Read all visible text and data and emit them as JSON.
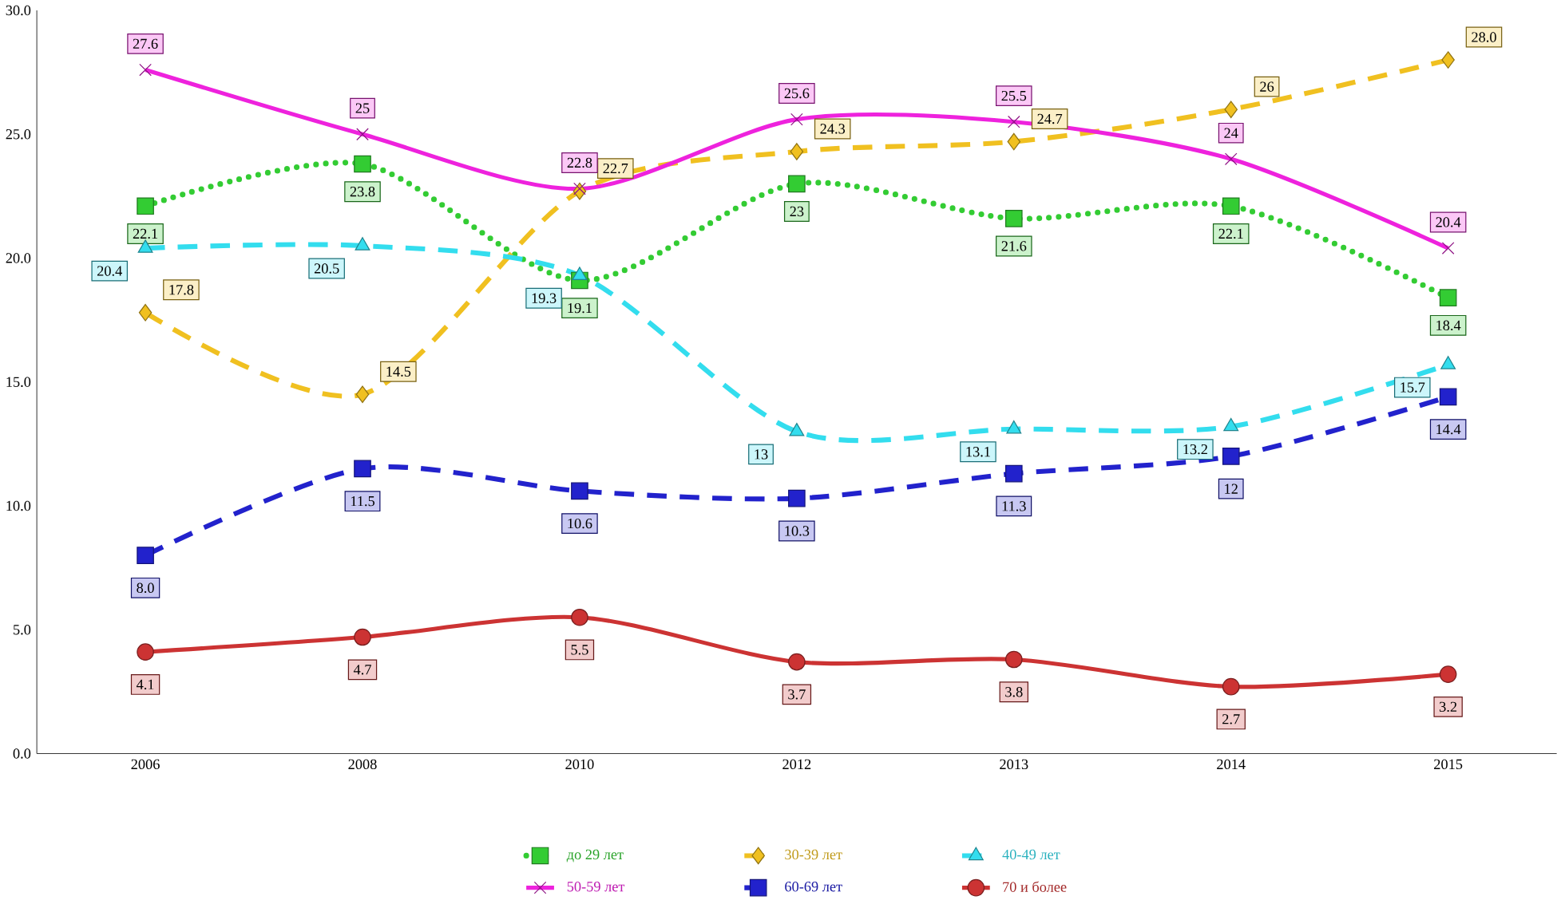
{
  "chart_data": {
    "type": "line",
    "categories": [
      "2006",
      "2008",
      "2010",
      "2012",
      "2013",
      "2014",
      "2015"
    ],
    "ylim": [
      0,
      30
    ],
    "yticks": [
      {
        "value": 0,
        "label": "0.0"
      },
      {
        "value": 5,
        "label": "5.0"
      },
      {
        "value": 10,
        "label": "10.0"
      },
      {
        "value": 15,
        "label": "15.0"
      },
      {
        "value": 20,
        "label": "20.0"
      },
      {
        "value": 25,
        "label": "25.0"
      },
      {
        "value": 30,
        "label": "30.0"
      }
    ],
    "grid": false,
    "legend": "bottom",
    "series": [
      {
        "name": "до 29 лет",
        "color": "#33cc33",
        "marker": "square",
        "line_style": "dotted",
        "values": [
          22.1,
          23.8,
          19.1,
          23,
          21.6,
          22.1,
          18.4
        ],
        "value_labels": [
          "22.1",
          "23.8",
          "19.1",
          "23",
          "21.6",
          "22.1",
          "18.4"
        ]
      },
      {
        "name": "30-39 лет",
        "color": "#f0c020",
        "marker": "diamond",
        "line_style": "dashed",
        "values": [
          17.8,
          14.5,
          22.7,
          24.3,
          24.7,
          26,
          28.0
        ],
        "value_labels": [
          "17.8",
          "14.5",
          "22.7",
          "24.3",
          "24.7",
          "26",
          "28.0"
        ]
      },
      {
        "name": "40-49 лет",
        "color": "#33ddee",
        "marker": "triangle",
        "line_style": "dashed",
        "values": [
          20.4,
          20.5,
          19.3,
          13,
          13.1,
          13.2,
          15.7
        ],
        "value_labels": [
          "20.4",
          "20.5",
          "19.3",
          "13",
          "13.1",
          "13.2",
          "15.7"
        ]
      },
      {
        "name": "50-59 лет",
        "color": "#ee22dd",
        "marker": "cross",
        "line_style": "solid",
        "values": [
          27.6,
          25,
          22.8,
          25.6,
          25.5,
          24,
          20.4
        ],
        "value_labels": [
          "27.6",
          "25",
          "22.8",
          "25.6",
          "25.5",
          "24",
          "20.4"
        ]
      },
      {
        "name": "60-69 лет",
        "color": "#2222cc",
        "marker": "square",
        "line_style": "dashed",
        "values": [
          8.0,
          11.5,
          10.6,
          10.3,
          11.3,
          12,
          14.4
        ],
        "value_labels": [
          "8.0",
          "11.5",
          "10.6",
          "10.3",
          "11.3",
          "12",
          "14.4"
        ]
      },
      {
        "name": "70 и более",
        "color": "#cc3333",
        "marker": "circle",
        "line_style": "solid",
        "values": [
          4.1,
          4.7,
          5.5,
          3.7,
          3.8,
          2.7,
          3.2
        ],
        "value_labels": [
          "4.1",
          "4.7",
          "5.5",
          "3.7",
          "3.8",
          "2.7",
          "3.2"
        ]
      }
    ]
  }
}
